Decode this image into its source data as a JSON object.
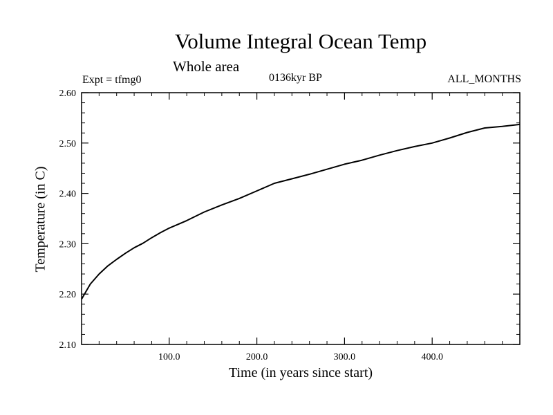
{
  "header": {
    "title": "Volume Integral Ocean Temp",
    "subtitle": "Whole area",
    "expt": "Expt = tfmg0",
    "period": "0136kyr BP",
    "months": "ALL_MONTHS"
  },
  "chart_data": {
    "type": "line",
    "title": "Volume Integral Ocean Temp",
    "subtitle": "Whole area",
    "xlabel": "Time (in years since start)",
    "ylabel": "Temperature (in C)",
    "xlim": [
      0,
      500
    ],
    "ylim": [
      2.1,
      2.6
    ],
    "xticks": [
      100,
      200,
      300,
      400
    ],
    "xtick_labels": [
      "100.0",
      "200.0",
      "300.0",
      "400.0"
    ],
    "yticks": [
      2.1,
      2.2,
      2.3,
      2.4,
      2.5,
      2.6
    ],
    "ytick_labels": [
      "2.10",
      "2.20",
      "2.30",
      "2.40",
      "2.50",
      "2.60"
    ],
    "grid": false,
    "color": "#000000",
    "series": [
      {
        "x": [
          0,
          10,
          20,
          30,
          40,
          50,
          60,
          70,
          80,
          90,
          100,
          120,
          140,
          160,
          180,
          200,
          220,
          240,
          260,
          280,
          300,
          320,
          340,
          360,
          380,
          400,
          420,
          440,
          460,
          480,
          500
        ],
        "values": [
          2.19,
          2.22,
          2.24,
          2.256,
          2.269,
          2.281,
          2.292,
          2.301,
          2.312,
          2.322,
          2.331,
          2.346,
          2.363,
          2.377,
          2.39,
          2.405,
          2.42,
          2.429,
          2.438,
          2.448,
          2.458,
          2.466,
          2.476,
          2.485,
          2.493,
          2.5,
          2.51,
          2.521,
          2.53,
          2.533,
          2.537
        ]
      }
    ]
  }
}
